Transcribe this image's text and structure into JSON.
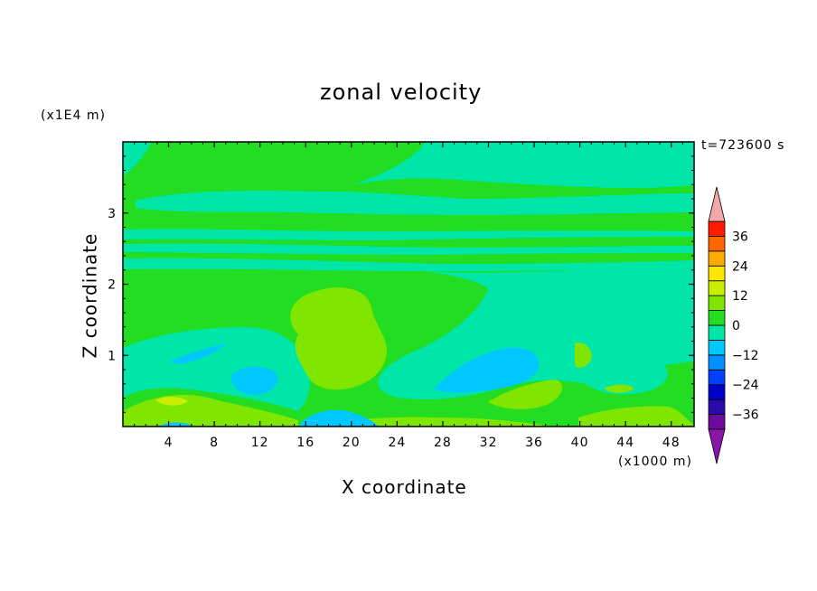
{
  "chart_data": {
    "type": "heatmap",
    "title": "zonal velocity",
    "xlabel": "X coordinate",
    "ylabel": "Z coordinate",
    "x_scale_note": "(x1000 m)",
    "y_scale_note": "(x1E4 m)",
    "time_label": "t=723600 s",
    "xlim": [
      0,
      50
    ],
    "ylim": [
      0,
      4
    ],
    "x_ticks": [
      4,
      8,
      12,
      16,
      20,
      24,
      28,
      32,
      36,
      40,
      44,
      48
    ],
    "y_ticks": [
      1,
      2,
      3
    ],
    "colorbar": {
      "levels": [
        -42,
        -36,
        -30,
        -24,
        -18,
        -12,
        -6,
        0,
        6,
        12,
        18,
        24,
        30,
        36,
        42
      ],
      "tick_labels": [
        "36",
        "24",
        "12",
        "0",
        "−12",
        "−24",
        "−36"
      ],
      "colors": [
        "#6a0a9e",
        "#2a0aa8",
        "#0000c8",
        "#0040ff",
        "#0090ff",
        "#00c8ff",
        "#00e5a8",
        "#22dd22",
        "#80e600",
        "#c8ee00",
        "#ffe600",
        "#ffaa00",
        "#ff6600",
        "#ff1a00"
      ],
      "under_color": "#8a16a8",
      "over_color": "#f2a8a8"
    },
    "field_regions": [
      {
        "name": "background",
        "value_range": [
          0,
          6
        ]
      },
      {
        "name": "upper-band-1",
        "value_range": [
          -6,
          0
        ],
        "z_range": [
          3.0,
          3.35
        ]
      },
      {
        "name": "upper-band-2",
        "value_range": [
          -6,
          0
        ],
        "z_range": [
          2.7,
          2.85
        ]
      },
      {
        "name": "upper-band-3",
        "value_range": [
          -6,
          0
        ],
        "z_range": [
          2.25,
          2.55
        ]
      },
      {
        "name": "left-top-corner",
        "value_range": [
          -6,
          0
        ],
        "x_range": [
          0,
          3
        ],
        "z_range": [
          3.5,
          4.0
        ]
      },
      {
        "name": "center-blob",
        "value_range": [
          6,
          12
        ],
        "x_range": [
          14,
          22
        ],
        "z_range": [
          0.5,
          1.95
        ]
      },
      {
        "name": "right-slant-band",
        "value_range": [
          -6,
          0
        ],
        "x_range": [
          22,
          50
        ],
        "z_range": [
          0.4,
          2.1
        ]
      },
      {
        "name": "low-cyan-patch",
        "value_range": [
          -12,
          -6
        ],
        "x_range": [
          26,
          36
        ],
        "z_range": [
          0.45,
          1.1
        ]
      },
      {
        "name": "surface-patches",
        "value_range": [
          6,
          12
        ],
        "x_range": [
          0,
          50
        ],
        "z_range": [
          0,
          0.5
        ]
      },
      {
        "name": "surface-cold-patch",
        "value_range": [
          -12,
          -6
        ],
        "x_range": [
          14,
          22
        ],
        "z_range": [
          0,
          0.2
        ]
      }
    ]
  }
}
